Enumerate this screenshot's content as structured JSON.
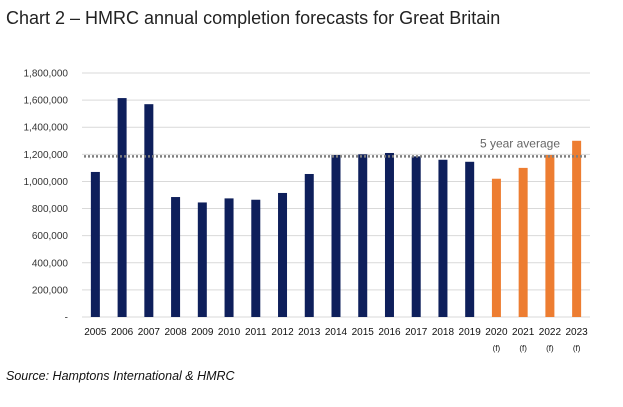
{
  "title": "Chart 2 – HMRC annual completion forecasts for Great Britain",
  "source": "Source: Hamptons International & HMRC",
  "chart_data": {
    "type": "bar",
    "title": "Chart 2 – HMRC annual completion forecasts for Great Britain",
    "xlabel": "",
    "ylabel": "",
    "ylim": [
      0,
      1800000
    ],
    "yticks": [
      "-",
      "200,000",
      "400,000",
      "600,000",
      "800,000",
      "1,000,000",
      "1,200,000",
      "1,400,000",
      "1,600,000",
      "1,800,000"
    ],
    "categories": [
      "2005",
      "2006",
      "2007",
      "2008",
      "2009",
      "2010",
      "2011",
      "2012",
      "2013",
      "2014",
      "2015",
      "2016",
      "2017",
      "2018",
      "2019",
      "2020",
      "2021",
      "2022",
      "2023"
    ],
    "category_notes": [
      "",
      "",
      "",
      "",
      "",
      "",
      "",
      "",
      "",
      "",
      "",
      "",
      "",
      "",
      "",
      "(f)",
      "(f)",
      "(f)",
      "(f)"
    ],
    "values": [
      1070000,
      1615000,
      1570000,
      885000,
      845000,
      875000,
      865000,
      915000,
      1055000,
      1195000,
      1200000,
      1210000,
      1185000,
      1160000,
      1145000,
      1020000,
      1100000,
      1195000,
      1300000
    ],
    "forecast_flags": [
      false,
      false,
      false,
      false,
      false,
      false,
      false,
      false,
      false,
      false,
      false,
      false,
      false,
      false,
      false,
      true,
      true,
      true,
      true
    ],
    "colors": {
      "actual": "#0e1f5b",
      "forecast": "#ed7d31",
      "average_line": "#7f7f7f",
      "grid": "#d9d9d9"
    },
    "reference_line": {
      "label": "5 year average",
      "value": 1185000,
      "style": "dotted"
    },
    "grid": true,
    "legend": "none"
  }
}
